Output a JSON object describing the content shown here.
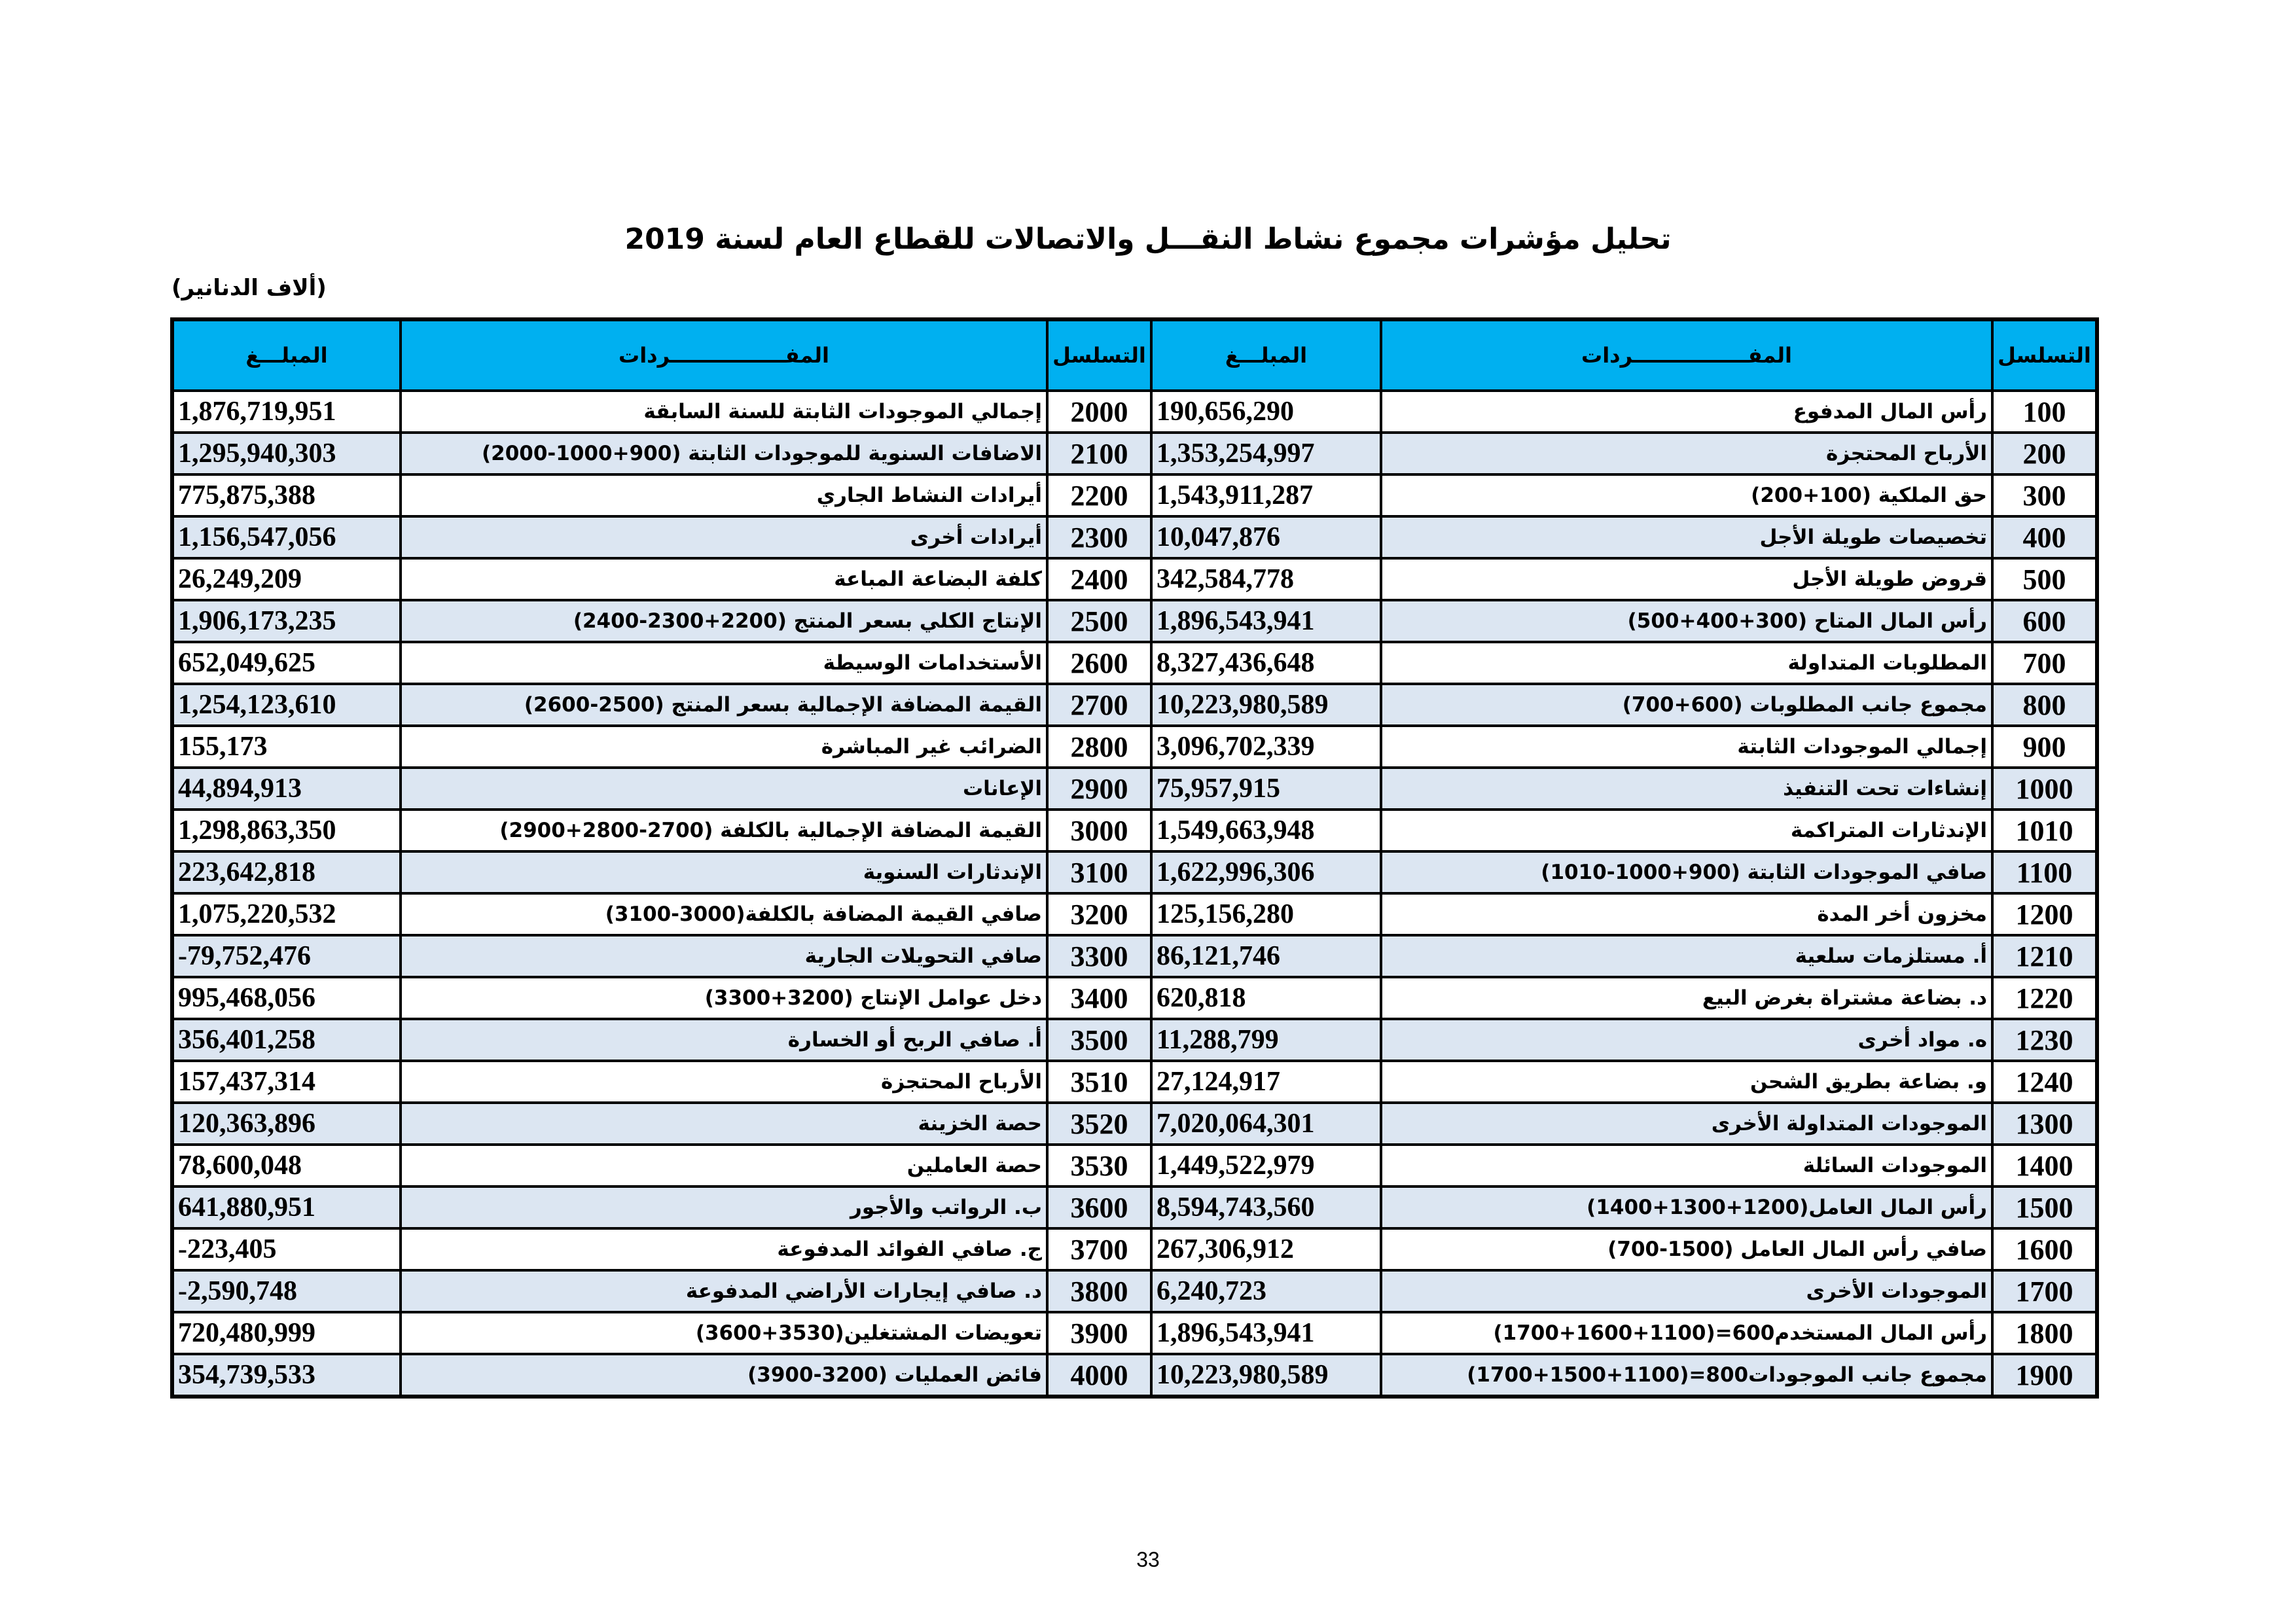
{
  "title": "تحليل مؤشرات مجموع نشاط النقـــل والاتصالات للقطاع العام لسنة 2019",
  "unit": "(ألاف الدنانير)",
  "headers": {
    "seq": "التسلسل",
    "item": "المفــــــــــــــــردات",
    "amount": "المبلـــغ"
  },
  "colors": {
    "header_bg": "#00b0f0",
    "alt_row_bg": "#dce6f2"
  },
  "rows": [
    {
      "r_seq": "100",
      "r_item": "رأس المال المدفوع",
      "r_amt": "190,656,290",
      "l_seq": "2000",
      "l_item": "إجمالي الموجودات الثابتة للسنة السابقة",
      "l_amt": "1,876,719,951"
    },
    {
      "r_seq": "200",
      "r_item": "الأرباح المحتجزة",
      "r_amt": "1,353,254,997",
      "l_seq": "2100",
      "l_item": "الاضافات السنوية للموجودات الثابتة (900+1000-2000)",
      "l_amt": "1,295,940,303"
    },
    {
      "r_seq": "300",
      "r_item": "حق الملكية (100+200)",
      "r_amt": "1,543,911,287",
      "l_seq": "2200",
      "l_item": "أيرادات النشاط الجاري",
      "l_amt": "775,875,388"
    },
    {
      "r_seq": "400",
      "r_item": "تخصيصات طويلة الأجل",
      "r_amt": "10,047,876",
      "l_seq": "2300",
      "l_item": "أيرادات أخرى",
      "l_amt": "1,156,547,056"
    },
    {
      "r_seq": "500",
      "r_item": "قروض طويلة الأجل",
      "r_amt": "342,584,778",
      "l_seq": "2400",
      "l_item": "كلفة البضاعة المباعة",
      "l_amt": "26,249,209"
    },
    {
      "r_seq": "600",
      "r_item": "رأس المال المتاح  (300+400+500)",
      "r_amt": "1,896,543,941",
      "l_seq": "2500",
      "l_item": "الإنتاج الكلي بسعر المنتج (2200+2300-2400)",
      "l_amt": "1,906,173,235"
    },
    {
      "r_seq": "700",
      "r_item": "المطلوبات المتداولة",
      "r_amt": "8,327,436,648",
      "l_seq": "2600",
      "l_item": "الأستخدامات الوسيطة",
      "l_amt": "652,049,625"
    },
    {
      "r_seq": "800",
      "r_item": "مجموع جانب المطلوبات (600+700)",
      "r_amt": "10,223,980,589",
      "l_seq": "2700",
      "l_item": "القيمة المضافة الإجمالية بسعر المنتج (2500-2600)",
      "l_amt": "1,254,123,610"
    },
    {
      "r_seq": "900",
      "r_item": "إجمالي الموجودات الثابتة",
      "r_amt": "3,096,702,339",
      "l_seq": "2800",
      "l_item": "الضرائب غير المباشرة",
      "l_amt": "155,173"
    },
    {
      "r_seq": "1000",
      "r_item": "إنشاءات تحت التنفيذ",
      "r_amt": "75,957,915",
      "l_seq": "2900",
      "l_item": "الإعانات",
      "l_amt": "44,894,913"
    },
    {
      "r_seq": "1010",
      "r_item": "الإندثارات المتراكمة",
      "r_amt": "1,549,663,948",
      "l_seq": "3000",
      "l_item": "القيمة المضافة الإجمالية بالكلفة (2700-2800+2900)",
      "l_amt": "1,298,863,350"
    },
    {
      "r_seq": "1100",
      "r_item": "صافي الموجودات الثابتة (900+1000-1010)",
      "r_amt": "1,622,996,306",
      "l_seq": "3100",
      "l_item": "الإندثارات السنوية",
      "l_amt": "223,642,818"
    },
    {
      "r_seq": "1200",
      "r_item": "مخزون أخر المدة",
      "r_amt": "125,156,280",
      "l_seq": "3200",
      "l_item": "صافي القيمة المضافة بالكلفة(3000-3100)",
      "l_amt": "1,075,220,532"
    },
    {
      "r_seq": "1210",
      "r_item": "أ. مستلزمات سلعية",
      "r_amt": "86,121,746",
      "l_seq": "3300",
      "l_item": "صافي التحويلات الجارية",
      "l_amt": "-79,752,476"
    },
    {
      "r_seq": "1220",
      "r_item": "د. بضاعة مشتراة بغرض البيع",
      "r_amt": "620,818",
      "l_seq": "3400",
      "l_item": "دخل عوامل الإنتاج (3200+3300)",
      "l_amt": "995,468,056"
    },
    {
      "r_seq": "1230",
      "r_item": "ه. مواد أخرى",
      "r_amt": "11,288,799",
      "l_seq": "3500",
      "l_item": "أ. صافي الربح أو الخسارة",
      "l_amt": "356,401,258"
    },
    {
      "r_seq": "1240",
      "r_item": "و. بضاعة بطريق الشحن",
      "r_amt": "27,124,917",
      "l_seq": "3510",
      "l_item": "الأرباح المحتجزة",
      "l_amt": "157,437,314"
    },
    {
      "r_seq": "1300",
      "r_item": "الموجودات المتداولة الأخرى",
      "r_amt": "7,020,064,301",
      "l_seq": "3520",
      "l_item": "حصة الخزينة",
      "l_amt": "120,363,896"
    },
    {
      "r_seq": "1400",
      "r_item": "الموجودات السائلة",
      "r_amt": "1,449,522,979",
      "l_seq": "3530",
      "l_item": "حصة العاملين",
      "l_amt": "78,600,048"
    },
    {
      "r_seq": "1500",
      "r_item": "رأس المال العامل(1200+1300+1400)",
      "r_amt": "8,594,743,560",
      "l_seq": "3600",
      "l_item": "ب. الرواتب والأجور",
      "l_amt": "641,880,951"
    },
    {
      "r_seq": "1600",
      "r_item": "صافي رأس المال العامل (1500-700)",
      "r_amt": "267,306,912",
      "l_seq": "3700",
      "l_item": "ج. صافي الفوائد المدفوعة",
      "l_amt": "-223,405"
    },
    {
      "r_seq": "1700",
      "r_item": "الموجودات الأخرى",
      "r_amt": "6,240,723",
      "l_seq": "3800",
      "l_item": "د. صافي إيجارات الأراضي المدفوعة",
      "l_amt": "-2,590,748"
    },
    {
      "r_seq": "1800",
      "r_item": "رأس المال المستخدم600=(1100+1600+1700)",
      "r_amt": "1,896,543,941",
      "l_seq": "3900",
      "l_item": "تعويضات المشتغلين(3530+3600)",
      "l_amt": "720,480,999"
    },
    {
      "r_seq": "1900",
      "r_item": "مجموع جانب الموجودات800=(1100+1500+1700)",
      "r_amt": "10,223,980,589",
      "l_seq": "4000",
      "l_item": "فائض العمليات (3200-3900)",
      "l_amt": "354,739,533"
    }
  ],
  "page_number": "33"
}
